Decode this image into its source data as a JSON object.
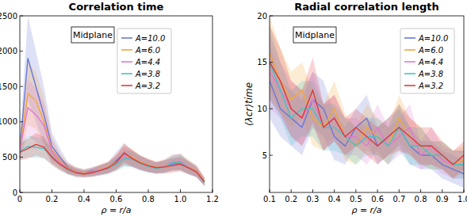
{
  "chart_data": [
    {
      "type": "line",
      "title": "Correlation time",
      "annotation": "Midplane",
      "xlabel": "ρ = r/a",
      "legend": "upper right",
      "grid": false,
      "xlim": [
        0,
        1.2
      ],
      "xticks": [
        0,
        0.2,
        0.4,
        0.6,
        0.8,
        {
          "value": 1,
          "label": "1.0"
        },
        1.2
      ],
      "ylim": [
        0,
        2500
      ],
      "yticks": [
        0,
        500,
        1000,
        1500,
        2000,
        2500
      ],
      "x": [
        0,
        0.05,
        0.1,
        0.15,
        0.2,
        0.25,
        0.3,
        0.35,
        0.4,
        0.45,
        0.5,
        0.55,
        0.6,
        0.65,
        0.7,
        0.75,
        0.8,
        0.85,
        0.9,
        0.95,
        1.0,
        1.05,
        1.1,
        1.15
      ],
      "series": [
        {
          "name": "A=10.0",
          "color": "#6a78d6",
          "values": [
            600,
            1900,
            1500,
            1100,
            650,
            500,
            350,
            300,
            280,
            300,
            320,
            350,
            450,
            550,
            480,
            420,
            380,
            350,
            370,
            400,
            420,
            350,
            300,
            150
          ],
          "error": [
            150,
            600,
            500,
            400,
            200,
            120,
            80,
            60,
            50,
            60,
            70,
            80,
            120,
            150,
            120,
            100,
            90,
            80,
            90,
            100,
            110,
            100,
            80,
            60
          ]
        },
        {
          "name": "A=6.0",
          "color": "#f2a83a",
          "values": [
            600,
            1400,
            1300,
            1000,
            600,
            450,
            340,
            300,
            280,
            290,
            330,
            360,
            430,
            520,
            500,
            430,
            390,
            360,
            380,
            420,
            430,
            370,
            310,
            160
          ],
          "error": [
            140,
            450,
            400,
            350,
            180,
            110,
            80,
            60,
            50,
            60,
            70,
            80,
            110,
            140,
            120,
            100,
            90,
            80,
            90,
            110,
            120,
            100,
            80,
            60
          ]
        },
        {
          "name": "A=4.4",
          "color": "#e07ad0",
          "values": [
            600,
            1200,
            1100,
            950,
            580,
            430,
            330,
            290,
            270,
            290,
            320,
            350,
            420,
            510,
            480,
            420,
            380,
            350,
            370,
            430,
            440,
            360,
            300,
            150
          ],
          "error": [
            130,
            400,
            380,
            320,
            170,
            100,
            70,
            60,
            50,
            60,
            70,
            80,
            110,
            130,
            120,
            100,
            90,
            80,
            90,
            110,
            110,
            90,
            80,
            60
          ]
        },
        {
          "name": "A=3.8",
          "color": "#45c4c4",
          "values": [
            580,
            650,
            640,
            620,
            500,
            400,
            320,
            280,
            260,
            280,
            310,
            340,
            400,
            480,
            470,
            410,
            370,
            340,
            360,
            420,
            430,
            350,
            290,
            140
          ],
          "error": [
            120,
            150,
            150,
            140,
            110,
            90,
            70,
            60,
            50,
            60,
            70,
            80,
            100,
            120,
            110,
            100,
            90,
            80,
            90,
            100,
            110,
            90,
            70,
            50
          ]
        },
        {
          "name": "A=3.2",
          "color": "#e03a3a",
          "values": [
            570,
            620,
            680,
            640,
            500,
            400,
            330,
            280,
            260,
            280,
            310,
            350,
            420,
            560,
            480,
            420,
            380,
            350,
            360,
            380,
            400,
            350,
            290,
            150
          ],
          "error": [
            120,
            140,
            160,
            150,
            110,
            90,
            70,
            60,
            50,
            60,
            70,
            80,
            100,
            130,
            110,
            100,
            90,
            80,
            90,
            100,
            100,
            90,
            70,
            50
          ]
        }
      ]
    },
    {
      "type": "line",
      "title": "Radial correlation length",
      "annotation": "Midplane",
      "xlabel": "ρ = r/a",
      "ylabel": "⟨λcr⟩time",
      "legend": "upper right",
      "grid": false,
      "xlim": [
        0.1,
        1.0
      ],
      "xticks": [
        0.1,
        0.2,
        0.3,
        0.4,
        0.5,
        0.6,
        0.7,
        0.8,
        0.9,
        {
          "value": 1,
          "label": "1.0"
        }
      ],
      "ylim": [
        1,
        20
      ],
      "yticks": [
        5,
        10,
        15,
        20
      ],
      "x": [
        0.1,
        0.15,
        0.2,
        0.25,
        0.3,
        0.35,
        0.4,
        0.45,
        0.5,
        0.55,
        0.6,
        0.65,
        0.7,
        0.75,
        0.8,
        0.85,
        0.9,
        0.95,
        1.0
      ],
      "series": [
        {
          "name": "A=10.0",
          "color": "#6a78d6",
          "values": [
            13,
            10,
            9,
            8,
            11,
            10,
            7,
            6,
            8,
            9,
            6,
            7,
            8,
            6,
            5,
            5,
            4,
            3.5,
            3
          ],
          "error": [
            4,
            3,
            3,
            3,
            3,
            3,
            2.5,
            2,
            2,
            2.5,
            2,
            2,
            2,
            2,
            1.5,
            1.5,
            1.5,
            1.5,
            1.5
          ]
        },
        {
          "name": "A=6.0",
          "color": "#f2a83a",
          "values": [
            16,
            13,
            11,
            12,
            9,
            8,
            10,
            7,
            6,
            8,
            7,
            6,
            9,
            7,
            6,
            5,
            5,
            4,
            4.5
          ],
          "error": [
            4,
            3.5,
            3,
            3,
            3,
            2.5,
            3,
            2.5,
            2,
            2.5,
            2,
            2,
            2.5,
            2,
            2,
            1.5,
            1.5,
            1.5,
            1.5
          ]
        },
        {
          "name": "A=4.4",
          "color": "#e07ad0",
          "values": [
            14,
            12,
            10,
            9,
            11,
            8,
            9,
            7,
            7,
            6,
            8,
            6,
            7,
            8,
            5,
            6,
            4.5,
            4,
            4
          ],
          "error": [
            4,
            3,
            3,
            3,
            3,
            2.5,
            2.5,
            2,
            2,
            2,
            2.5,
            2,
            2,
            2.5,
            1.5,
            2,
            1.5,
            1.5,
            1.5
          ]
        },
        {
          "name": "A=3.8",
          "color": "#45c4c4",
          "values": [
            15,
            12,
            9,
            10,
            10,
            8,
            8,
            7,
            6,
            7,
            7,
            6,
            8,
            6,
            6,
            5,
            5,
            4,
            4
          ],
          "error": [
            4,
            3,
            3,
            3,
            3,
            2.5,
            2.5,
            2,
            2,
            2,
            2,
            2,
            2.5,
            2,
            2,
            1.5,
            1.5,
            1.5,
            1.5
          ]
        },
        {
          "name": "A=3.2",
          "color": "#e03a3a",
          "values": [
            15,
            13,
            10,
            9,
            12,
            8,
            9,
            7,
            8,
            7,
            6,
            7,
            8,
            7,
            6,
            6,
            5,
            4,
            5
          ],
          "error": [
            4,
            3.5,
            3,
            3,
            3.5,
            2.5,
            2.5,
            2,
            2,
            2,
            2,
            2,
            2.5,
            2,
            2,
            2,
            1.5,
            1.5,
            1.5
          ]
        }
      ]
    }
  ]
}
